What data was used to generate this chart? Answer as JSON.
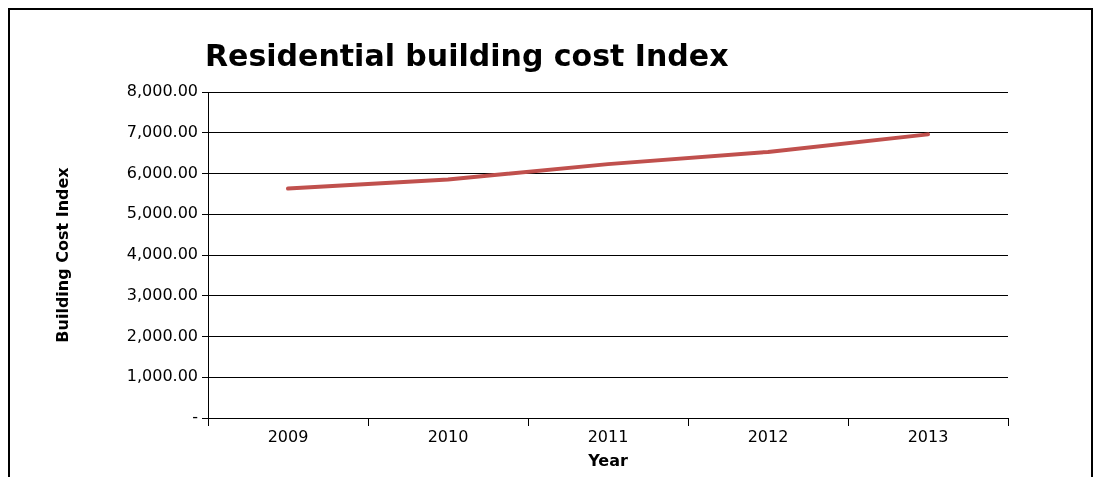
{
  "chart_data": {
    "type": "line",
    "title": "Residential building cost Index",
    "xlabel": "Year",
    "ylabel": "Building Cost Index",
    "categories": [
      "2009",
      "2010",
      "2011",
      "2012",
      "2013"
    ],
    "series": [
      {
        "color": "#c0504d",
        "values": [
          5630,
          5850,
          6230,
          6530,
          6960
        ]
      }
    ],
    "ylim": [
      0,
      8000
    ],
    "yticks": [
      {
        "value": 0,
        "label": "-"
      },
      {
        "value": 1000,
        "label": "1,000.00"
      },
      {
        "value": 2000,
        "label": "2,000.00"
      },
      {
        "value": 3000,
        "label": "3,000.00"
      },
      {
        "value": 4000,
        "label": "4,000.00"
      },
      {
        "value": 5000,
        "label": "5,000.00"
      },
      {
        "value": 6000,
        "label": "6,000.00"
      },
      {
        "value": 7000,
        "label": "7,000.00"
      },
      {
        "value": 8000,
        "label": "8,000.00"
      }
    ],
    "grid": "y",
    "legend": false,
    "marker": "none",
    "line_style": "solid"
  }
}
